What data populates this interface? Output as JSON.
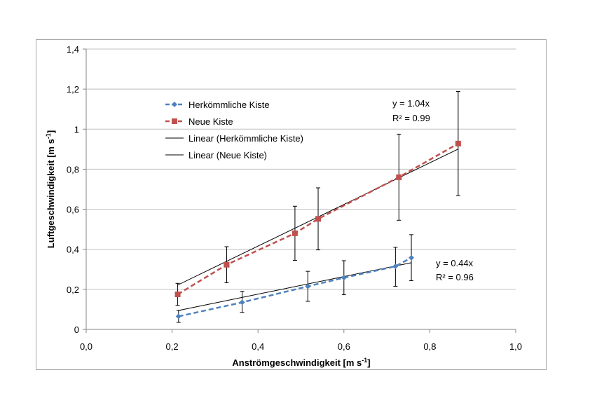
{
  "chart_data": {
    "type": "line",
    "xlabel": "Anströmgeschwindigkeit [m s",
    "xlabel_sup": "-1",
    "xlabel_end": "]",
    "ylabel": "Luftgeschwindigkeit [m s",
    "ylabel_sup": "-1",
    "ylabel_end": "]",
    "xlim": [
      0,
      1.0
    ],
    "ylim": [
      0,
      1.4
    ],
    "x_ticks": [
      0,
      0.2,
      0.4,
      0.6,
      0.8,
      1.0
    ],
    "x_tick_labels": [
      "0,0",
      "0,2",
      "0,4",
      "0,6",
      "0,8",
      "1,0"
    ],
    "y_ticks": [
      0,
      0.2,
      0.4,
      0.6,
      0.8,
      1.0,
      1.2,
      1.4
    ],
    "y_tick_labels": [
      "0",
      "0,2",
      "0,4",
      "0,6",
      "0,8",
      "1",
      "1,2",
      "1,4"
    ],
    "grid": "horizontal",
    "legend_position": "top-left",
    "series": [
      {
        "name": "Herkömmliche Kiste",
        "color": "#4f81bd",
        "marker": "diamond",
        "x": [
          0.215,
          0.363,
          0.516,
          0.6,
          0.72,
          0.757
        ],
        "y": [
          0.065,
          0.135,
          0.215,
          0.258,
          0.315,
          0.358
        ],
        "err_low": [
          0.03,
          0.05,
          0.075,
          0.085,
          0.1,
          0.115
        ],
        "err_high": [
          0.03,
          0.055,
          0.075,
          0.085,
          0.095,
          0.115
        ]
      },
      {
        "name": "Neue Kiste",
        "color": "#c0504d",
        "marker": "square",
        "x": [
          0.213,
          0.327,
          0.486,
          0.54,
          0.728,
          0.866
        ],
        "y": [
          0.175,
          0.323,
          0.48,
          0.552,
          0.76,
          0.928
        ],
        "err_low": [
          0.055,
          0.09,
          0.135,
          0.155,
          0.215,
          0.26
        ],
        "err_high": [
          0.055,
          0.09,
          0.135,
          0.155,
          0.215,
          0.26
        ]
      }
    ],
    "trendlines": [
      {
        "name": "Linear (Herkömmliche Kiste)",
        "color": "#000000",
        "slope": 0.44,
        "x_start": 0.215,
        "x_end": 0.757
      },
      {
        "name": "Linear (Neue Kiste)",
        "color": "#000000",
        "slope": 1.04,
        "x_start": 0.213,
        "x_end": 0.866
      }
    ],
    "annotations": [
      {
        "id": "eq-neue",
        "lines": [
          "y = 1.04x",
          "R² = 0.99"
        ]
      },
      {
        "id": "eq-herk",
        "lines": [
          "y = 0.44x",
          "R² = 0.96"
        ]
      }
    ]
  }
}
